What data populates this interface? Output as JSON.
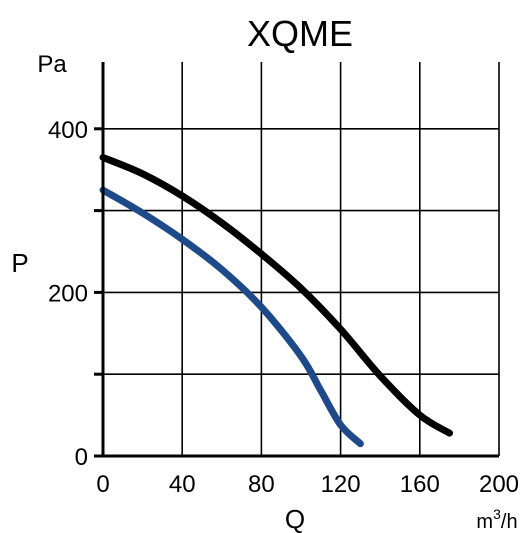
{
  "chart_data": {
    "type": "line",
    "title": "XQME",
    "xlabel": "Q",
    "ylabel": "P",
    "x_unit": "m",
    "x_unit_sup": "3",
    "x_unit_tail": "/h",
    "y_unit": "Pa",
    "xlim": [
      0,
      200
    ],
    "ylim": [
      0,
      470
    ],
    "x_ticks": [
      0,
      40,
      80,
      120,
      160,
      200
    ],
    "x_tick_labels": [
      "0",
      "40",
      "80",
      "120",
      "160",
      "200"
    ],
    "y_ticks": [
      0,
      100,
      200,
      300,
      400
    ],
    "y_tick_labels": [
      "0",
      "",
      "200",
      "",
      "400"
    ],
    "grid": true,
    "series": [
      {
        "color": "#000000",
        "points": [
          [
            0,
            365
          ],
          [
            20,
            345
          ],
          [
            40,
            318
          ],
          [
            60,
            285
          ],
          [
            80,
            247
          ],
          [
            100,
            205
          ],
          [
            120,
            155
          ],
          [
            140,
            98
          ],
          [
            160,
            50
          ],
          [
            175,
            28
          ]
        ]
      },
      {
        "color": "#1f4a8a",
        "points": [
          [
            0,
            325
          ],
          [
            20,
            297
          ],
          [
            40,
            265
          ],
          [
            60,
            228
          ],
          [
            80,
            182
          ],
          [
            100,
            122
          ],
          [
            110,
            80
          ],
          [
            120,
            38
          ],
          [
            130,
            15
          ]
        ]
      }
    ]
  }
}
